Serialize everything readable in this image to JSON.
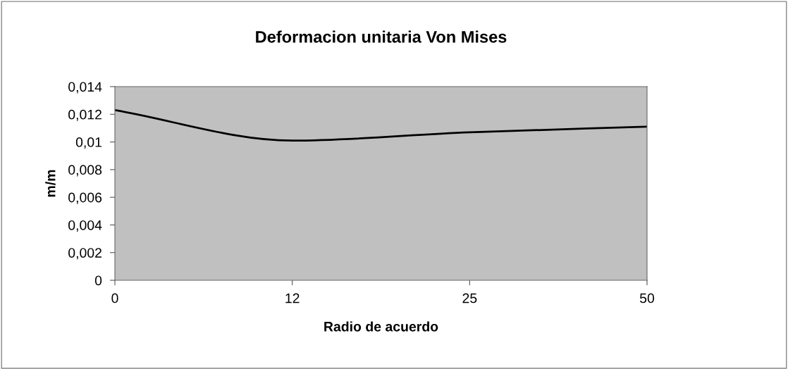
{
  "chart_data": {
    "type": "line",
    "title": "Deformacion unitaria Von Mises",
    "xlabel": "Radio de acuerdo",
    "ylabel": "m/m",
    "categories": [
      "0",
      "12",
      "25",
      "50"
    ],
    "series": [
      {
        "color": "#000000",
        "values": [
          0.0123,
          0.0101,
          0.0107,
          0.0111
        ]
      }
    ],
    "ylim": [
      0,
      0.014
    ],
    "yticks": [
      0,
      {
        "value": 0.002,
        "label": "0,002"
      },
      {
        "value": 0.004,
        "label": "0,004"
      },
      {
        "value": 0.006,
        "label": "0,006"
      },
      {
        "value": 0.008,
        "label": "0,008"
      },
      {
        "value": 0.01,
        "label": "0,01"
      },
      {
        "value": 0.012,
        "label": "0,012"
      },
      {
        "value": 0.014,
        "label": "0,014"
      }
    ],
    "grid": false,
    "legend": false,
    "marker": "none",
    "line_style": "solid"
  }
}
